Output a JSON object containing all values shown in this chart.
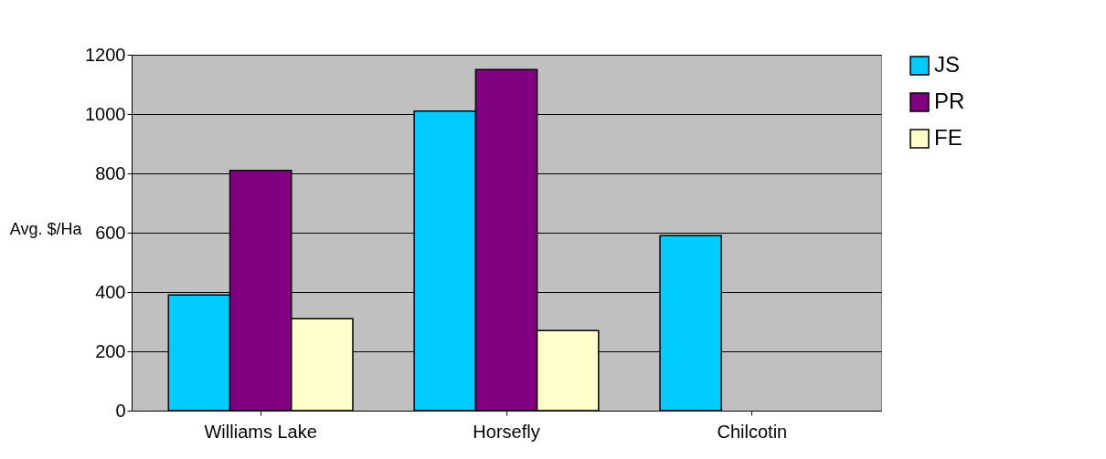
{
  "chart_data": {
    "type": "bar",
    "ylabel": "Avg. $/Ha",
    "categories": [
      "Williams Lake",
      "Horsefly",
      "Chilcotin"
    ],
    "series": [
      {
        "name": "JS",
        "color": "#00ccff",
        "values": [
          390,
          1010,
          590
        ]
      },
      {
        "name": "PR",
        "color": "#800080",
        "values": [
          810,
          1150,
          null
        ]
      },
      {
        "name": "FE",
        "color": "#ffffcc",
        "values": [
          310,
          270,
          null
        ]
      }
    ],
    "ylim": [
      0,
      1200
    ],
    "yticks": [
      0,
      200,
      400,
      600,
      800,
      1000,
      1200
    ],
    "grid": "y",
    "legend": "right"
  }
}
